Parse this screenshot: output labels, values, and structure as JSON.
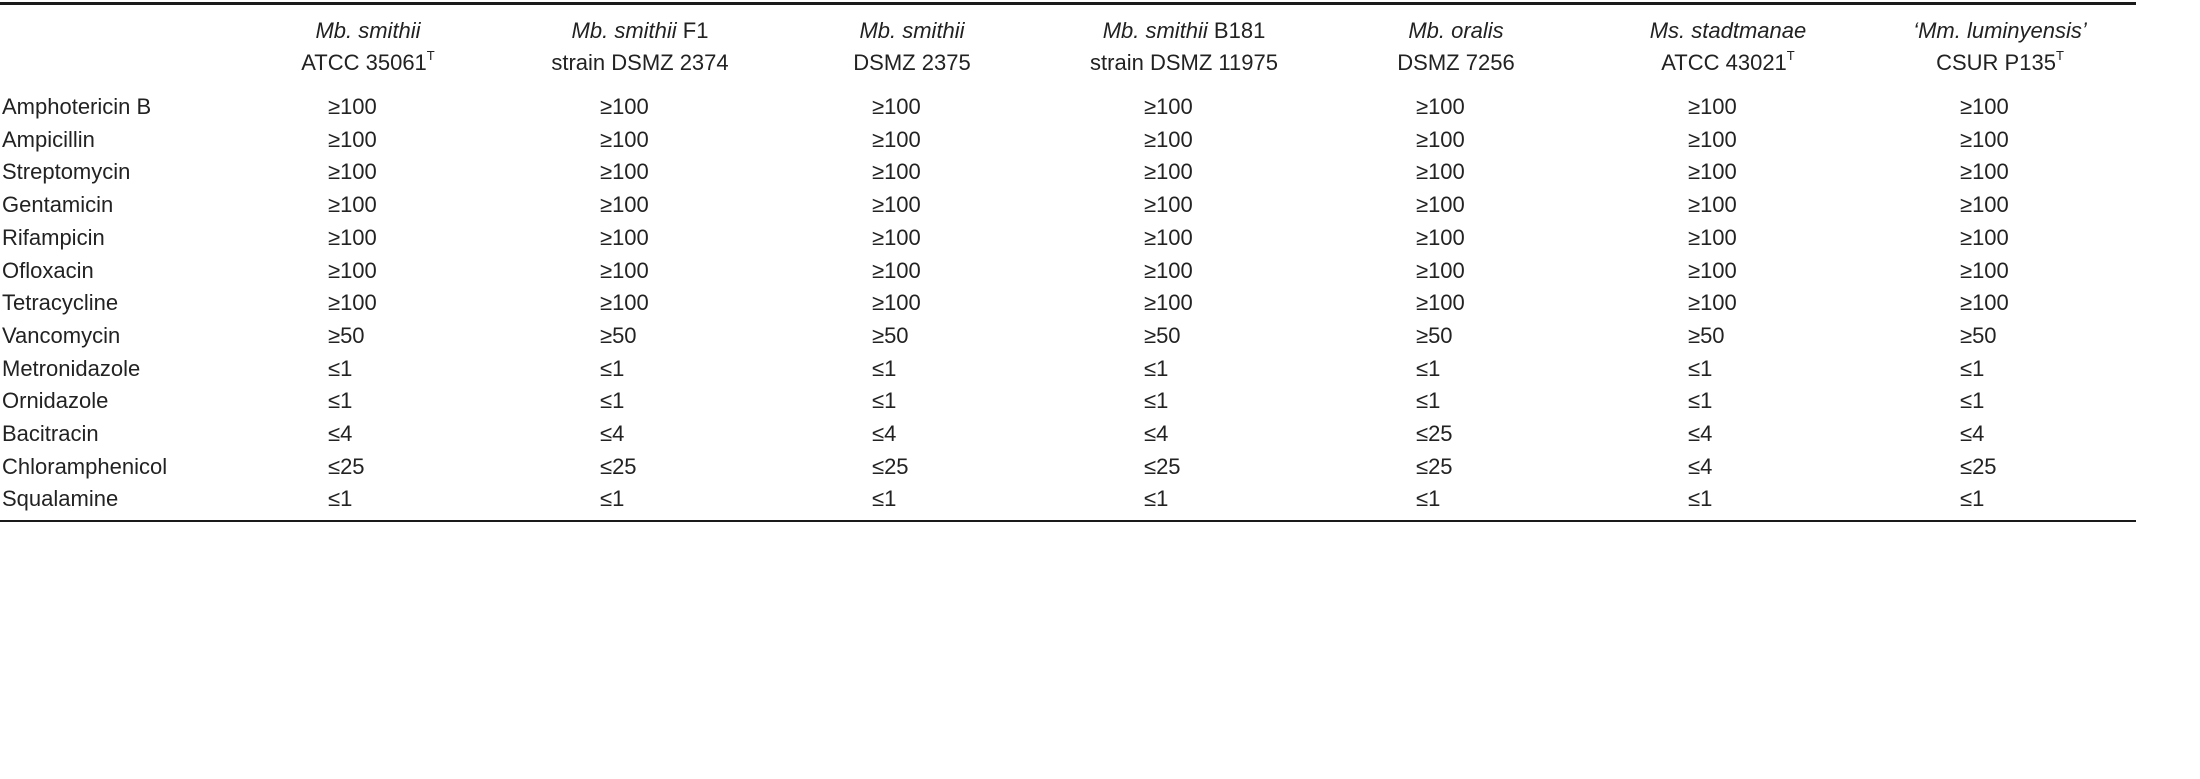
{
  "table": {
    "columns": [
      {
        "italic": "Mb. smithii",
        "suffix": "",
        "line2": "ATCC 35061",
        "sup": "T"
      },
      {
        "italic": "Mb. smithii",
        "suffix": " F1",
        "line2": "strain DSMZ 2374",
        "sup": ""
      },
      {
        "italic": "Mb. smithii",
        "suffix": "",
        "line2": "DSMZ 2375",
        "sup": ""
      },
      {
        "italic": "Mb. smithii",
        "suffix": " B181",
        "line2": "strain DSMZ 11975",
        "sup": ""
      },
      {
        "italic": "Mb. oralis",
        "suffix": "",
        "line2": "DSMZ 7256",
        "sup": ""
      },
      {
        "italic": "Ms. stadtmanae",
        "suffix": "",
        "line2": "ATCC 43021",
        "sup": "T"
      },
      {
        "italic": "‘Mm. luminyensis’",
        "suffix": "",
        "line2": "CSUR P135",
        "sup": "T"
      }
    ],
    "rows": [
      {
        "label": "Amphotericin B",
        "values": [
          "≥100",
          "≥100",
          "≥100",
          "≥100",
          "≥100",
          "≥100",
          "≥100"
        ]
      },
      {
        "label": "Ampicillin",
        "values": [
          "≥100",
          "≥100",
          "≥100",
          "≥100",
          "≥100",
          "≥100",
          "≥100"
        ]
      },
      {
        "label": "Streptomycin",
        "values": [
          "≥100",
          "≥100",
          "≥100",
          "≥100",
          "≥100",
          "≥100",
          "≥100"
        ]
      },
      {
        "label": "Gentamicin",
        "values": [
          "≥100",
          "≥100",
          "≥100",
          "≥100",
          "≥100",
          "≥100",
          "≥100"
        ]
      },
      {
        "label": "Rifampicin",
        "values": [
          "≥100",
          "≥100",
          "≥100",
          "≥100",
          "≥100",
          "≥100",
          "≥100"
        ]
      },
      {
        "label": "Ofloxacin",
        "values": [
          "≥100",
          "≥100",
          "≥100",
          "≥100",
          "≥100",
          "≥100",
          "≥100"
        ]
      },
      {
        "label": "Tetracycline",
        "values": [
          "≥100",
          "≥100",
          "≥100",
          "≥100",
          "≥100",
          "≥100",
          "≥100"
        ]
      },
      {
        "label": "Vancomycin",
        "values": [
          "≥50",
          "≥50",
          "≥50",
          "≥50",
          "≥50",
          "≥50",
          "≥50"
        ]
      },
      {
        "label": "Metronidazole",
        "values": [
          "≤1",
          "≤1",
          "≤1",
          "≤1",
          "≤1",
          "≤1",
          "≤1"
        ]
      },
      {
        "label": "Ornidazole",
        "values": [
          "≤1",
          "≤1",
          "≤1",
          "≤1",
          "≤1",
          "≤1",
          "≤1"
        ]
      },
      {
        "label": "Bacitracin",
        "values": [
          "≤4",
          "≤4",
          "≤4",
          "≤4",
          "≤25",
          "≤4",
          "≤4"
        ]
      },
      {
        "label": "Chloramphenicol",
        "values": [
          "≤25",
          "≤25",
          "≤25",
          "≤25",
          "≤25",
          "≤4",
          "≤25"
        ]
      },
      {
        "label": "Squalamine",
        "values": [
          "≤1",
          "≤1",
          "≤1",
          "≤1",
          "≤1",
          "≤1",
          "≤1"
        ]
      }
    ]
  }
}
